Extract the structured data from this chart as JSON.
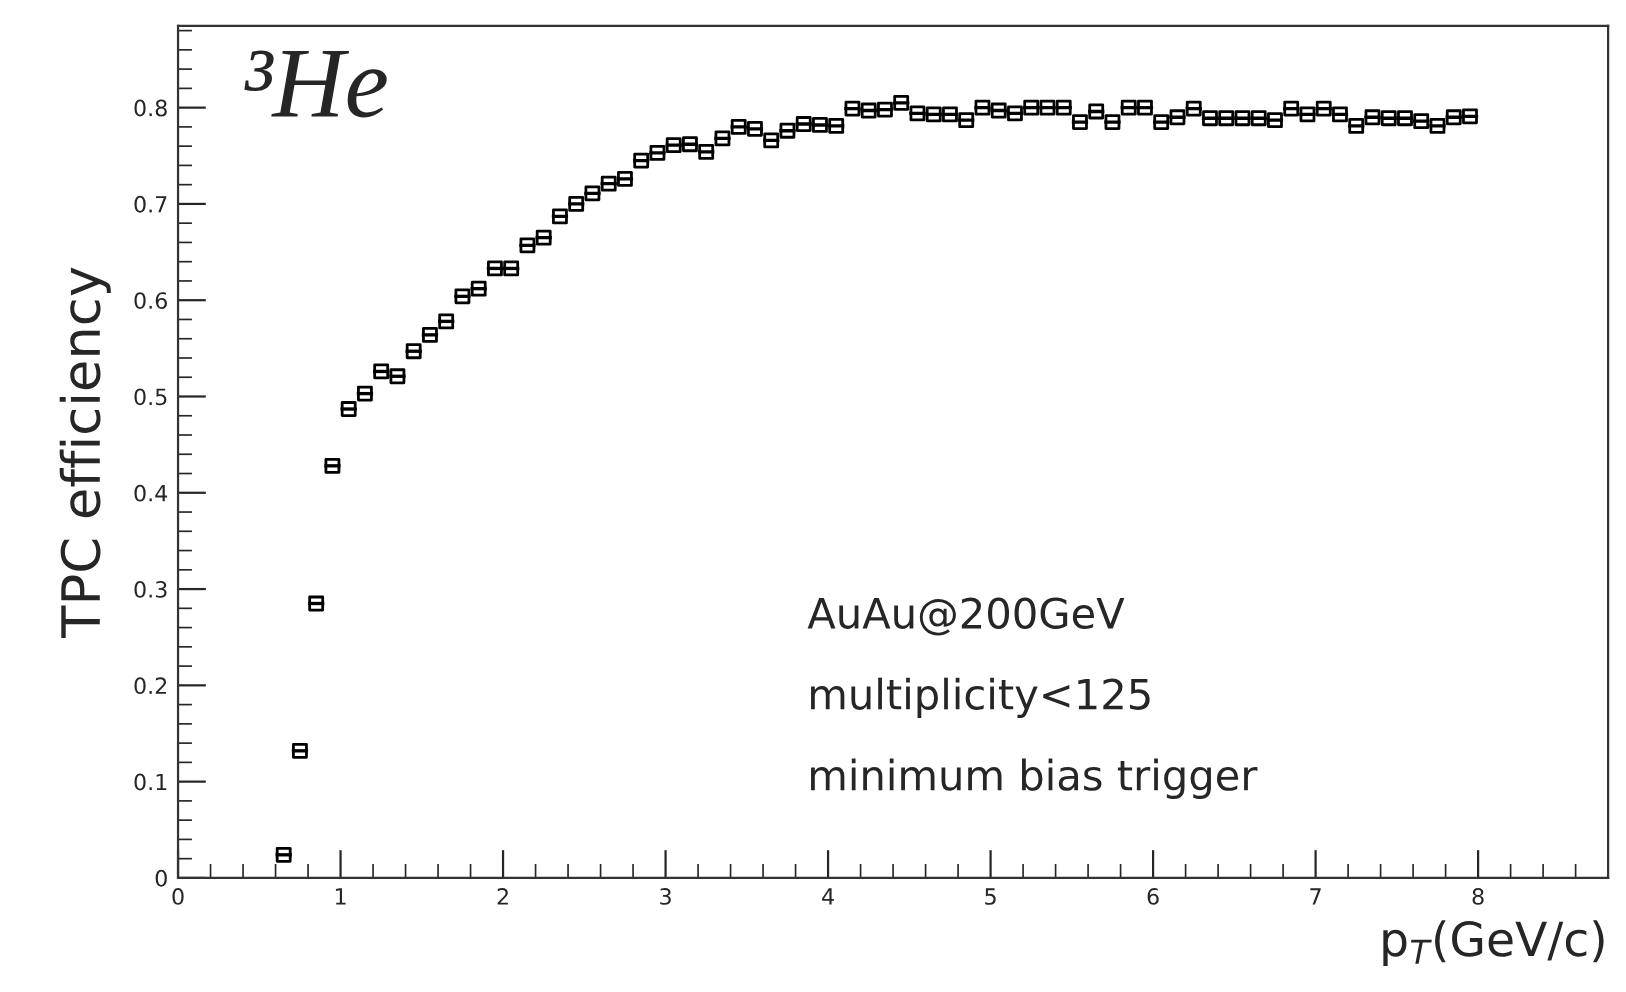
{
  "chart_data": {
    "type": "scatter",
    "xlabel": "p$_{T}$(GeV/c)",
    "ylabel": "TPC efficiency",
    "annotations": [
      "³He",
      "AuAu@200GeV",
      "multiplicity<125",
      "minimum bias trigger"
    ],
    "x": [
      0.65,
      0.75,
      0.85,
      0.95,
      1.05,
      1.15,
      1.25,
      1.35,
      1.45,
      1.55,
      1.65,
      1.75,
      1.85,
      1.95,
      2.05,
      2.15,
      2.25,
      2.35,
      2.45,
      2.55,
      2.65,
      2.75,
      2.85,
      2.95,
      3.05,
      3.15,
      3.25,
      3.35,
      3.45,
      3.55,
      3.65,
      3.75,
      3.85,
      3.95,
      4.05,
      4.15,
      4.25,
      4.35,
      4.45,
      4.55,
      4.65,
      4.75,
      4.85,
      4.95,
      5.05,
      5.15,
      5.25,
      5.35,
      5.45,
      5.55,
      5.65,
      5.75,
      5.85,
      5.95,
      6.05,
      6.15,
      6.25,
      6.35,
      6.45,
      6.55,
      6.65,
      6.75,
      6.85,
      6.95,
      7.05,
      7.15,
      7.25,
      7.35,
      7.45,
      7.55,
      7.65,
      7.75,
      7.85,
      7.95
    ],
    "values": [
      0.024,
      0.132,
      0.285,
      0.428,
      0.487,
      0.503,
      0.526,
      0.521,
      0.547,
      0.564,
      0.578,
      0.604,
      0.612,
      0.633,
      0.633,
      0.657,
      0.665,
      0.687,
      0.7,
      0.711,
      0.721,
      0.726,
      0.745,
      0.753,
      0.761,
      0.762,
      0.754,
      0.768,
      0.78,
      0.778,
      0.766,
      0.776,
      0.783,
      0.782,
      0.781,
      0.799,
      0.797,
      0.798,
      0.805,
      0.794,
      0.793,
      0.793,
      0.787,
      0.8,
      0.797,
      0.794,
      0.8,
      0.8,
      0.8,
      0.785,
      0.796,
      0.785,
      0.8,
      0.8,
      0.785,
      0.79,
      0.799,
      0.789,
      0.789,
      0.789,
      0.789,
      0.787,
      0.799,
      0.793,
      0.799,
      0.793,
      0.781,
      0.79,
      0.789,
      0.789,
      0.786,
      0.781,
      0.79,
      0.791
    ],
    "xerrors": [
      0.05,
      0.05,
      0.05,
      0.05,
      0.05,
      0.05,
      0.05,
      0.05,
      0.05,
      0.05,
      0.05,
      0.05,
      0.05,
      0.05,
      0.05,
      0.05,
      0.05,
      0.05,
      0.05,
      0.05,
      0.05,
      0.05,
      0.05,
      0.05,
      0.05,
      0.05,
      0.05,
      0.05,
      0.05,
      0.05,
      0.05,
      0.05,
      0.05,
      0.05,
      0.05,
      0.05,
      0.05,
      0.05,
      0.05,
      0.05,
      0.05,
      0.05,
      0.05,
      0.05,
      0.05,
      0.05,
      0.05,
      0.05,
      0.05,
      0.05,
      0.05,
      0.05,
      0.05,
      0.05,
      0.05,
      0.05,
      0.05,
      0.05,
      0.05,
      0.05,
      0.05,
      0.05,
      0.05,
      0.05,
      0.05,
      0.05,
      0.05,
      0.05,
      0.05,
      0.05,
      0.05,
      0.05,
      0.05,
      0.05
    ],
    "color": "#000000",
    "marker": "square",
    "grid": false,
    "xlim": [
      0,
      8.8
    ],
    "ylim": [
      0,
      0.885
    ],
    "xticks": [
      0,
      1,
      2,
      3,
      4,
      5,
      6,
      7,
      8
    ],
    "yticks": [
      0,
      0.1,
      0.2,
      0.3,
      0.4,
      0.5,
      0.6,
      0.7,
      0.8
    ]
  }
}
